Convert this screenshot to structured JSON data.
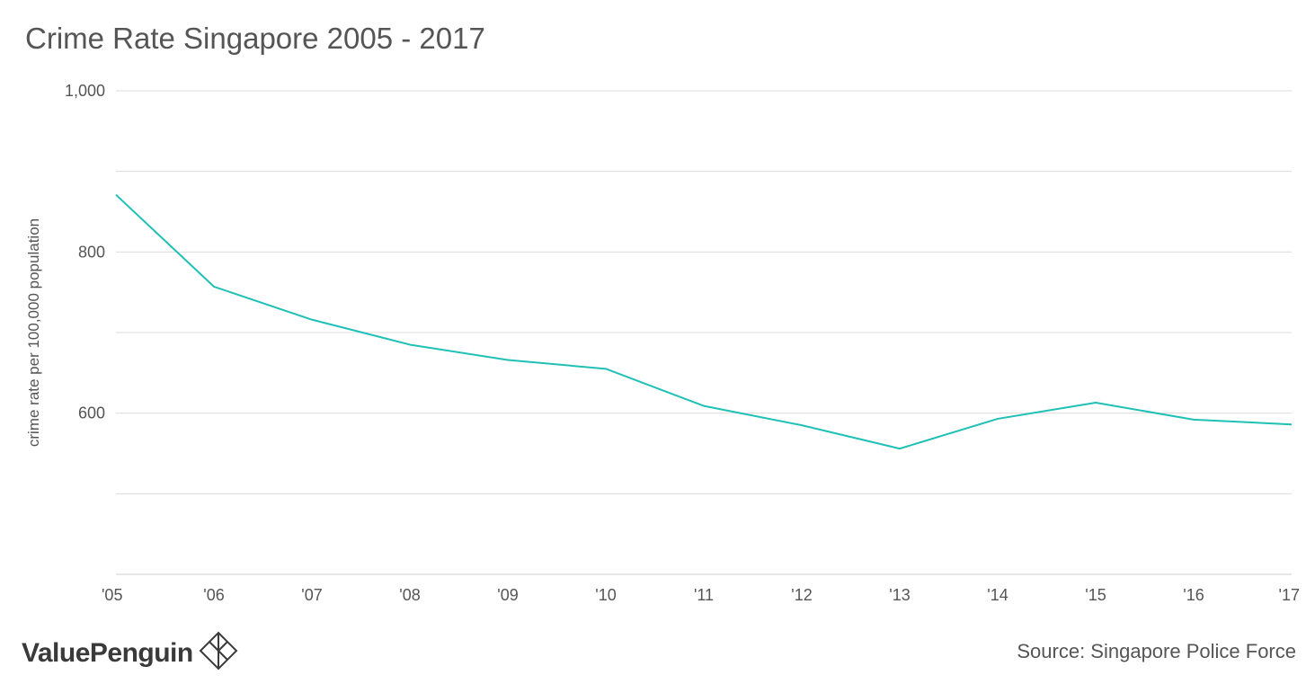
{
  "chart_data": {
    "type": "line",
    "title": "Crime Rate Singapore 2005 - 2017",
    "ylabel": "crime rate per 100,000 population",
    "xlabel": "",
    "categories": [
      "'05",
      "'06",
      "'07",
      "'08",
      "'09",
      "'10",
      "'11",
      "'12",
      "'13",
      "'14",
      "'15",
      "'16",
      "'17"
    ],
    "series": [
      {
        "values": [
          871,
          757,
          716,
          685,
          666,
          655,
          609,
          585,
          556,
          593,
          613,
          592,
          586
        ]
      }
    ],
    "ylim": [
      400,
      1000
    ],
    "yticks": [
      1000,
      900,
      800,
      700,
      600,
      500,
      400
    ],
    "ytick_labels": [
      "1,000",
      "",
      "800",
      "",
      "600",
      "",
      ""
    ],
    "grid": true,
    "legend": "none",
    "line_color": "#1fc0b6",
    "grid_color": "#dcdcdc"
  },
  "footer": {
    "brand": "ValuePenguin",
    "source": "Source: Singapore Police Force"
  }
}
